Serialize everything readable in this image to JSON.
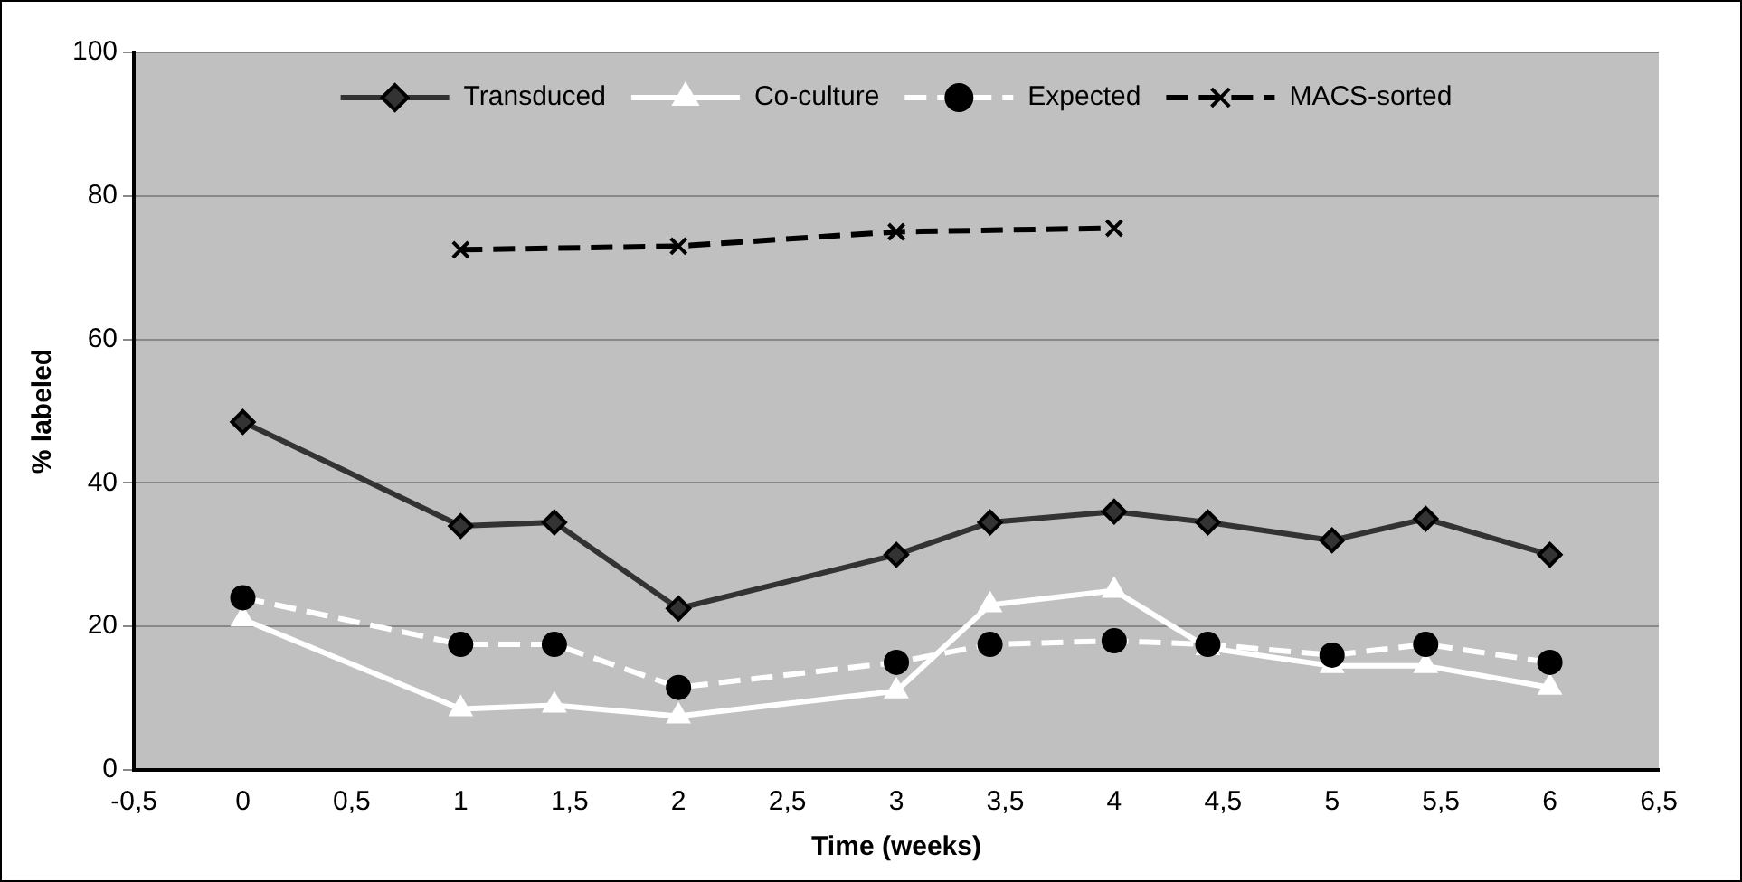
{
  "chart_data": {
    "type": "line",
    "xlabel": "Time (weeks)",
    "ylabel": "% labeled",
    "x": [
      0,
      1,
      1.43,
      2,
      3,
      3.43,
      4,
      4.43,
      5,
      5.43,
      6
    ],
    "series": [
      {
        "name": "Transduced",
        "color": "#333333",
        "marker": "diamond",
        "line_style": "solid",
        "values": [
          48.5,
          34,
          34.5,
          22.5,
          30,
          34.5,
          36,
          34.5,
          32,
          35,
          30
        ]
      },
      {
        "name": "Co-culture",
        "color": "#ffffff",
        "marker": "triangle",
        "line_style": "solid",
        "values": [
          21,
          8.5,
          9,
          7.5,
          11,
          23,
          25,
          17,
          14.5,
          14.5,
          11.5
        ]
      },
      {
        "name": "Expected",
        "color": "#ffffff",
        "marker": "circle",
        "line_style": "dashed",
        "values": [
          24,
          17.5,
          17.5,
          11.5,
          15,
          17.5,
          18,
          17.5,
          16,
          17.5,
          15
        ]
      },
      {
        "name": "MACS-sorted",
        "color": "#000000",
        "marker": "cross",
        "line_style": "dashed",
        "x": [
          1,
          2,
          3,
          4
        ],
        "values": [
          72.5,
          73,
          75,
          75.5
        ]
      }
    ],
    "xlim": [
      -0.5,
      6.5
    ],
    "xticks": [
      {
        "value": -0.5,
        "label": "-0,5"
      },
      0,
      {
        "value": 0.5,
        "label": "0,5"
      },
      1,
      {
        "value": 1.5,
        "label": "1,5"
      },
      2,
      {
        "value": 2.5,
        "label": "2,5"
      },
      3,
      {
        "value": 3.5,
        "label": "3,5"
      },
      4,
      {
        "value": 4.5,
        "label": "4,5"
      },
      5,
      {
        "value": 5.5,
        "label": "5,5"
      },
      6,
      {
        "value": 6.5,
        "label": "6,5"
      }
    ],
    "ylim": [
      0,
      100
    ],
    "yticks": [
      0,
      20,
      40,
      60,
      80,
      100
    ],
    "grid": "y",
    "legend": "top"
  }
}
